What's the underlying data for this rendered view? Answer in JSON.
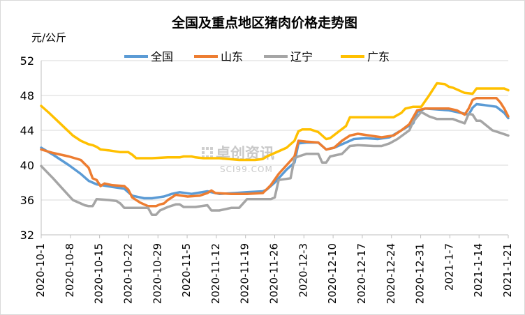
{
  "chart_data": {
    "type": "line",
    "title": "全国及重点地区猪肉价格走势图",
    "ylabel": "元/公斤",
    "xlabel": "",
    "ylim": [
      32,
      52
    ],
    "yticks": [
      32,
      36,
      40,
      44,
      48,
      52
    ],
    "grid": true,
    "legend": "top",
    "x_start": "2020-10-1",
    "x_end": "2021-1-21",
    "xticks": [
      "2020-10-1",
      "2020-10-8",
      "2020-10-15",
      "2020-10-22",
      "2020-10-29",
      "2020-11-5",
      "2020-11-12",
      "2020-11-19",
      "2020-11-26",
      "2020-12-3",
      "2020-12-10",
      "2020-12-17",
      "2020-12-24",
      "2020-12-31",
      "2021-1-7",
      "2021-1-14",
      "2021-1-21"
    ],
    "series": [
      {
        "name": "全国",
        "color": "#5b9bd5",
        "points": [
          [
            0,
            42.0
          ],
          [
            3,
            41.2
          ],
          [
            7,
            40.0
          ],
          [
            10,
            39.0
          ],
          [
            12,
            38.2
          ],
          [
            14,
            37.8
          ],
          [
            18,
            37.5
          ],
          [
            21,
            37.3
          ],
          [
            23,
            36.5
          ],
          [
            26,
            36.2
          ],
          [
            28,
            36.2
          ],
          [
            31,
            36.4
          ],
          [
            33,
            36.7
          ],
          [
            35,
            36.9
          ],
          [
            38,
            36.7
          ],
          [
            42,
            37.0
          ],
          [
            45,
            36.7
          ],
          [
            49,
            36.8
          ],
          [
            52,
            36.9
          ],
          [
            56,
            37.0
          ],
          [
            57,
            37.2
          ],
          [
            59,
            38.0
          ],
          [
            62,
            39.5
          ],
          [
            64,
            40.3
          ],
          [
            65,
            42.5
          ],
          [
            67,
            42.6
          ],
          [
            70,
            42.6
          ],
          [
            72,
            41.8
          ],
          [
            74,
            42.0
          ],
          [
            77,
            42.6
          ],
          [
            79,
            43.0
          ],
          [
            82,
            43.1
          ],
          [
            85,
            43.0
          ],
          [
            88,
            43.2
          ],
          [
            91,
            44.0
          ],
          [
            94,
            44.8
          ],
          [
            95,
            46.1
          ],
          [
            97,
            46.5
          ],
          [
            100,
            46.4
          ],
          [
            103,
            46.3
          ],
          [
            106,
            46.0
          ],
          [
            108,
            45.8
          ],
          [
            109,
            46.6
          ],
          [
            110,
            47.0
          ],
          [
            112,
            46.9
          ],
          [
            115,
            46.7
          ],
          [
            117,
            46.0
          ],
          [
            118,
            45.4
          ]
        ]
      },
      {
        "name": "山东",
        "color": "#ed7d31",
        "points": [
          [
            0,
            41.8
          ],
          [
            3,
            41.4
          ],
          [
            7,
            41.0
          ],
          [
            10,
            40.6
          ],
          [
            12,
            39.7
          ],
          [
            13,
            38.5
          ],
          [
            14,
            38.3
          ],
          [
            15,
            37.6
          ],
          [
            16,
            37.9
          ],
          [
            18,
            37.7
          ],
          [
            21,
            37.6
          ],
          [
            22,
            37.2
          ],
          [
            23,
            36.3
          ],
          [
            25,
            35.7
          ],
          [
            27,
            35.3
          ],
          [
            29,
            35.3
          ],
          [
            30,
            35.5
          ],
          [
            31,
            35.6
          ],
          [
            32,
            36.0
          ],
          [
            34,
            36.6
          ],
          [
            37,
            36.4
          ],
          [
            40,
            36.5
          ],
          [
            42,
            36.8
          ],
          [
            43,
            37.1
          ],
          [
            44,
            36.8
          ],
          [
            48,
            36.7
          ],
          [
            52,
            36.7
          ],
          [
            56,
            36.8
          ],
          [
            58,
            37.7
          ],
          [
            60,
            39.0
          ],
          [
            62,
            40.0
          ],
          [
            64,
            41.0
          ],
          [
            65,
            42.8
          ],
          [
            67,
            42.7
          ],
          [
            70,
            42.6
          ],
          [
            72,
            41.8
          ],
          [
            74,
            42.0
          ],
          [
            76,
            42.8
          ],
          [
            78,
            43.4
          ],
          [
            80,
            43.6
          ],
          [
            83,
            43.4
          ],
          [
            86,
            43.2
          ],
          [
            89,
            43.4
          ],
          [
            91,
            44.0
          ],
          [
            93,
            44.7
          ],
          [
            95,
            46.3
          ],
          [
            97,
            46.5
          ],
          [
            100,
            46.5
          ],
          [
            103,
            46.5
          ],
          [
            105,
            46.3
          ],
          [
            107,
            45.8
          ],
          [
            108,
            46.5
          ],
          [
            109,
            47.5
          ],
          [
            110,
            47.7
          ],
          [
            115,
            47.7
          ],
          [
            116,
            47.2
          ],
          [
            117,
            46.5
          ],
          [
            118,
            45.6
          ]
        ]
      },
      {
        "name": "辽宁",
        "color": "#a5a5a5",
        "points": [
          [
            0,
            39.9
          ],
          [
            3,
            38.5
          ],
          [
            5,
            37.5
          ],
          [
            7,
            36.5
          ],
          [
            8,
            36.0
          ],
          [
            11,
            35.4
          ],
          [
            12,
            35.3
          ],
          [
            13,
            35.3
          ],
          [
            14,
            36.1
          ],
          [
            17,
            36.0
          ],
          [
            19,
            35.9
          ],
          [
            20,
            35.6
          ],
          [
            21,
            35.1
          ],
          [
            25,
            35.1
          ],
          [
            27,
            35.1
          ],
          [
            28,
            34.3
          ],
          [
            29,
            34.3
          ],
          [
            30,
            34.8
          ],
          [
            32,
            35.2
          ],
          [
            34,
            35.5
          ],
          [
            35,
            35.5
          ],
          [
            36,
            35.2
          ],
          [
            39,
            35.2
          ],
          [
            42,
            35.4
          ],
          [
            43,
            34.8
          ],
          [
            45,
            34.8
          ],
          [
            48,
            35.1
          ],
          [
            50,
            35.1
          ],
          [
            52,
            36.1
          ],
          [
            54,
            36.1
          ],
          [
            58,
            36.1
          ],
          [
            59,
            36.3
          ],
          [
            60,
            38.3
          ],
          [
            63,
            38.5
          ],
          [
            64,
            40.8
          ],
          [
            65,
            41.0
          ],
          [
            67,
            41.3
          ],
          [
            70,
            41.3
          ],
          [
            71,
            40.3
          ],
          [
            72,
            40.3
          ],
          [
            73,
            41.0
          ],
          [
            75,
            41.2
          ],
          [
            76,
            41.3
          ],
          [
            78,
            42.2
          ],
          [
            80,
            42.3
          ],
          [
            84,
            42.2
          ],
          [
            86,
            42.2
          ],
          [
            88,
            42.5
          ],
          [
            90,
            43.0
          ],
          [
            93,
            44.0
          ],
          [
            94,
            45.0
          ],
          [
            96,
            46.1
          ],
          [
            98,
            45.6
          ],
          [
            100,
            45.3
          ],
          [
            104,
            45.3
          ],
          [
            107,
            44.8
          ],
          [
            108,
            45.9
          ],
          [
            109,
            45.8
          ],
          [
            110,
            45.1
          ],
          [
            111,
            45.1
          ],
          [
            114,
            44.0
          ],
          [
            116,
            43.7
          ],
          [
            118,
            43.4
          ]
        ]
      },
      {
        "name": "广东",
        "color": "#ffc000",
        "points": [
          [
            0,
            46.8
          ],
          [
            2,
            46.0
          ],
          [
            5,
            44.7
          ],
          [
            8,
            43.4
          ],
          [
            10,
            42.8
          ],
          [
            12,
            42.4
          ],
          [
            13,
            42.3
          ],
          [
            14,
            42.1
          ],
          [
            15,
            41.8
          ],
          [
            17,
            41.7
          ],
          [
            20,
            41.5
          ],
          [
            22,
            41.5
          ],
          [
            23,
            41.2
          ],
          [
            24,
            40.8
          ],
          [
            28,
            40.8
          ],
          [
            32,
            40.9
          ],
          [
            35,
            40.9
          ],
          [
            36,
            41.0
          ],
          [
            38,
            41.0
          ],
          [
            39,
            40.9
          ],
          [
            41,
            40.8
          ],
          [
            45,
            40.8
          ],
          [
            50,
            40.6
          ],
          [
            54,
            40.6
          ],
          [
            56,
            40.7
          ],
          [
            57,
            41.0
          ],
          [
            58,
            41.2
          ],
          [
            60,
            41.6
          ],
          [
            62,
            42.0
          ],
          [
            64,
            42.8
          ],
          [
            65,
            43.9
          ],
          [
            66,
            44.1
          ],
          [
            68,
            44.1
          ],
          [
            70,
            43.8
          ],
          [
            72,
            43.0
          ],
          [
            73,
            43.1
          ],
          [
            75,
            43.8
          ],
          [
            77,
            44.5
          ],
          [
            78,
            45.5
          ],
          [
            82,
            45.5
          ],
          [
            86,
            45.5
          ],
          [
            89,
            45.5
          ],
          [
            91,
            46.0
          ],
          [
            92,
            46.5
          ],
          [
            94,
            46.7
          ],
          [
            96,
            46.7
          ],
          [
            98,
            48.0
          ],
          [
            100,
            49.4
          ],
          [
            102,
            49.3
          ],
          [
            103,
            49.0
          ],
          [
            104,
            48.9
          ],
          [
            107,
            48.3
          ],
          [
            109,
            48.2
          ],
          [
            110,
            48.8
          ],
          [
            114,
            48.8
          ],
          [
            117,
            48.8
          ],
          [
            118,
            48.6
          ]
        ]
      }
    ]
  },
  "watermark": {
    "text": "卓创资讯",
    "sub": "SCI99.COM"
  }
}
